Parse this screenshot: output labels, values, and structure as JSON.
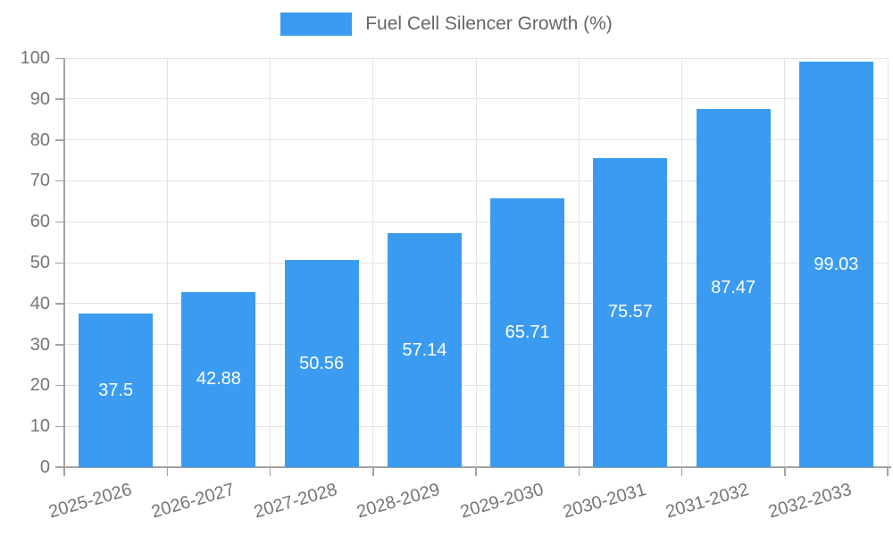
{
  "chart_data": {
    "type": "bar",
    "title": "",
    "legend": "Fuel Cell Silencer Growth (%)",
    "legend_position": "top-center",
    "categories": [
      "2025-2026",
      "2026-2027",
      "2027-2028",
      "2028-2029",
      "2029-2030",
      "2030-2031",
      "2031-2032",
      "2032-2033"
    ],
    "series": [
      {
        "name": "Fuel Cell Silencer Growth (%)",
        "values": [
          37.5,
          42.88,
          50.56,
          57.14,
          65.71,
          75.57,
          87.47,
          99.03
        ],
        "value_labels": [
          "37.5",
          "42.88",
          "50.56",
          "57.14",
          "65.71",
          "75.57",
          "87.47",
          "99.03"
        ]
      }
    ],
    "xlabel": "",
    "ylabel": "",
    "ylim": [
      0,
      100
    ],
    "ytick_step": 10,
    "yticks": [
      "0",
      "10",
      "20",
      "30",
      "40",
      "50",
      "60",
      "70",
      "80",
      "90",
      "100"
    ],
    "grid": true,
    "colors": {
      "bar": "#3b9bf0",
      "value_label": "#ffffff",
      "axis": "#a2a2a2",
      "gridline": "#e4e4e4",
      "tick_text": "#757575",
      "legend_text": "#666666"
    }
  }
}
